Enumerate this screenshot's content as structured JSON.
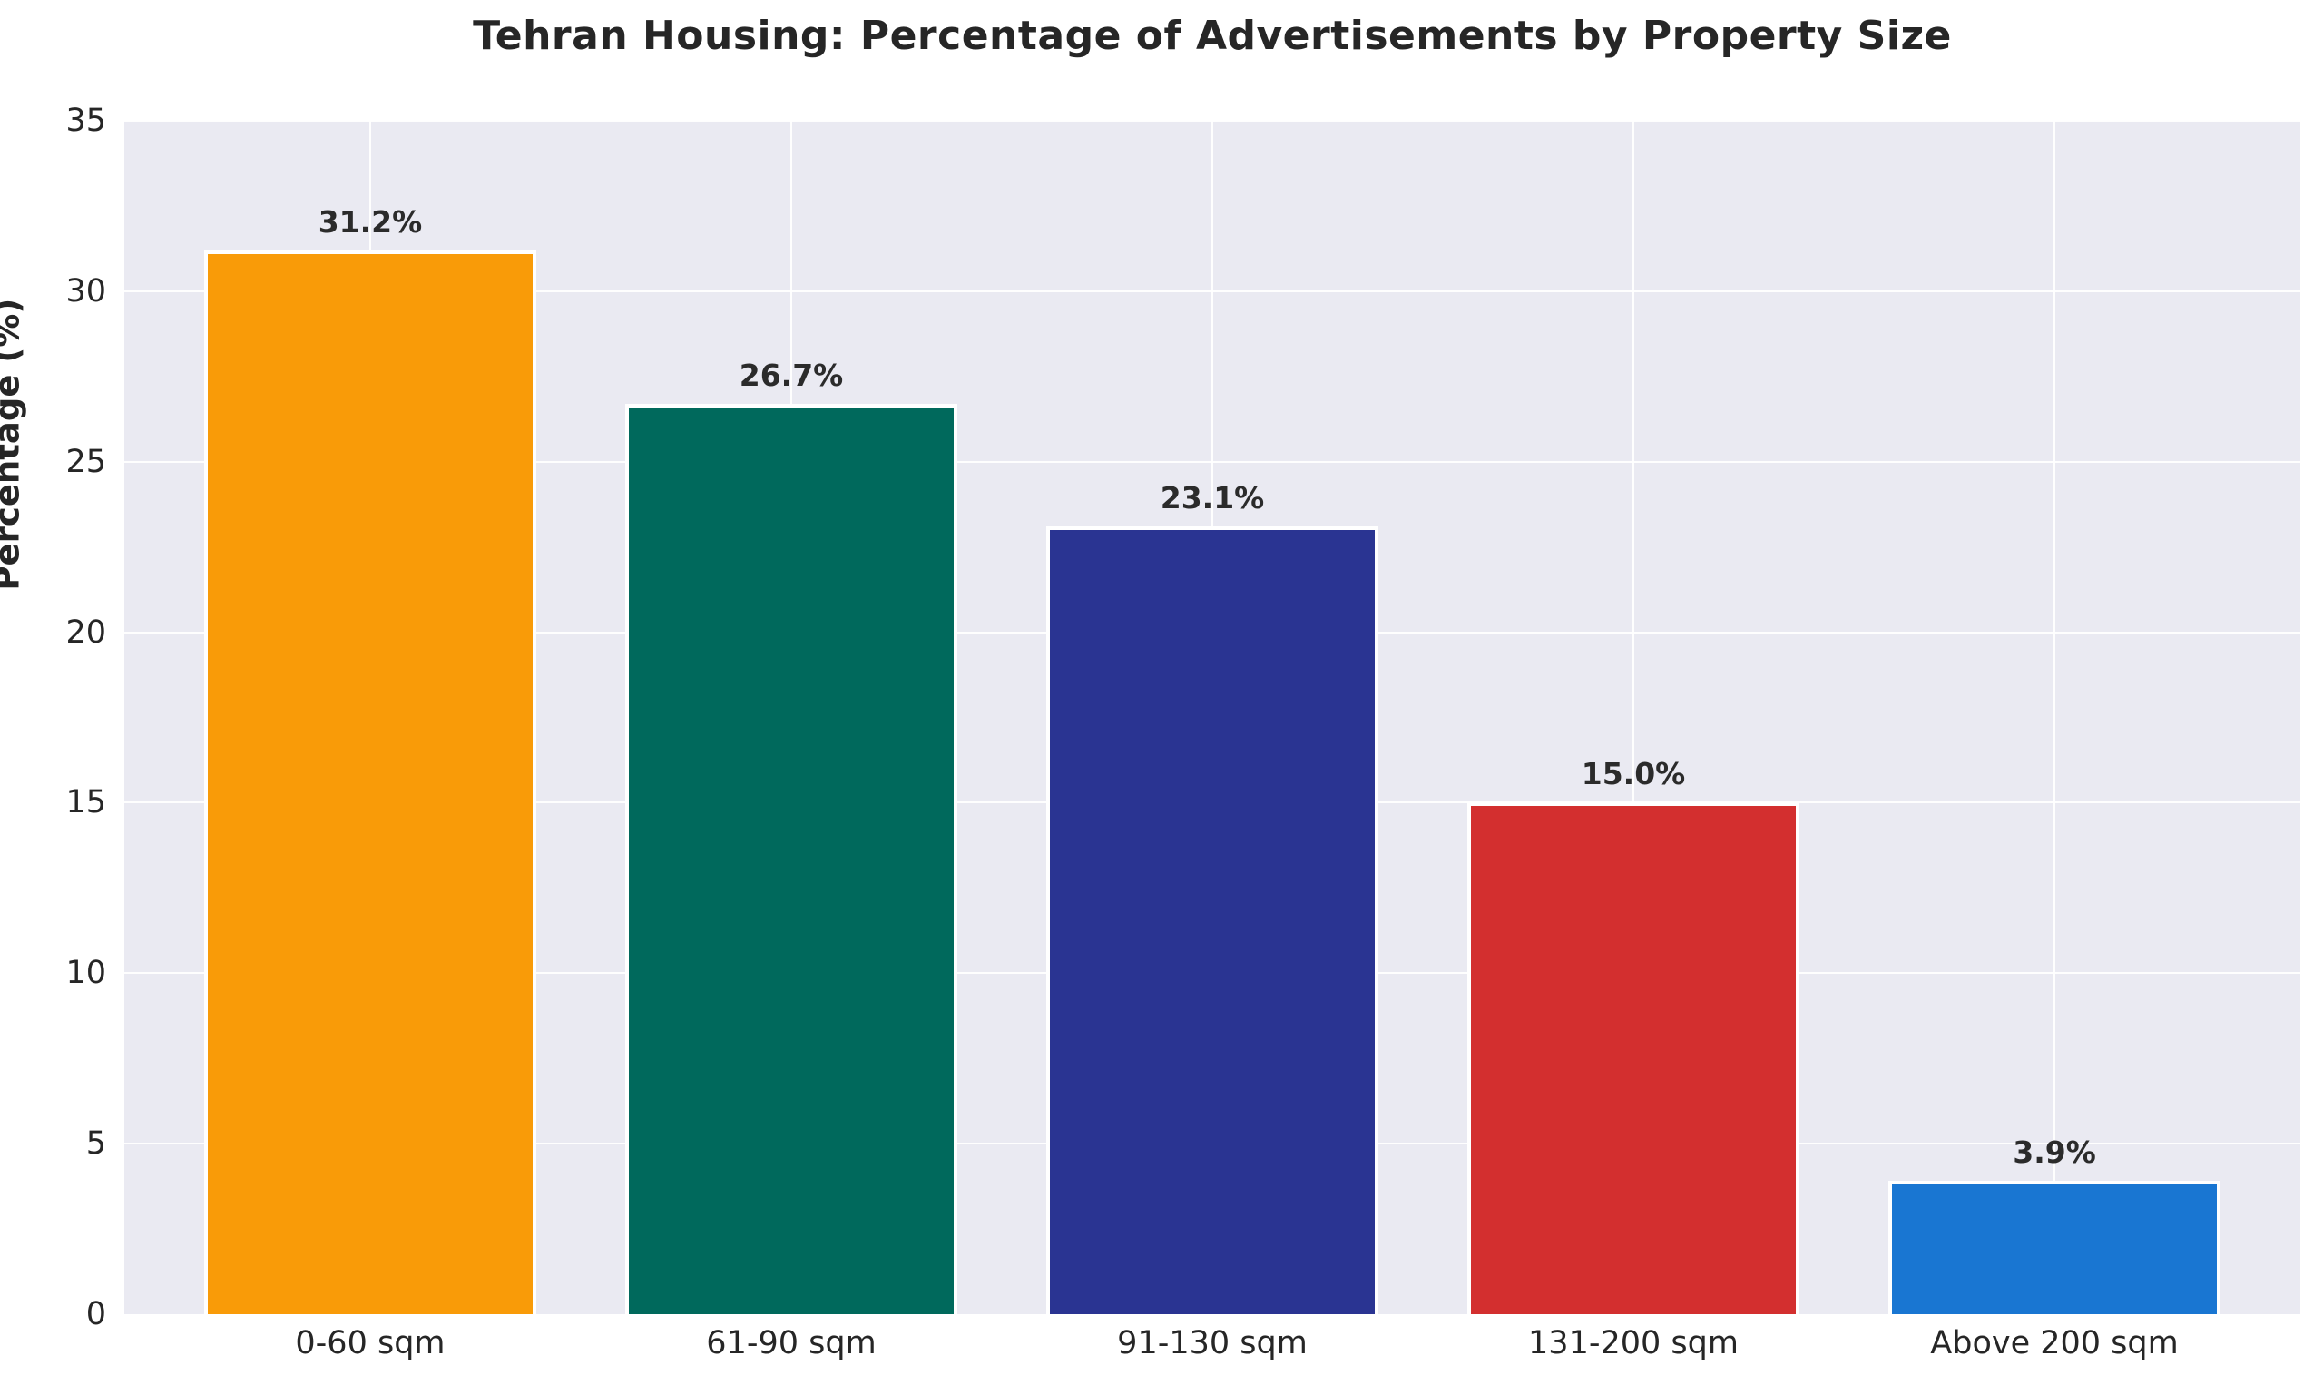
{
  "chart_data": {
    "type": "bar",
    "title": "Tehran Housing: Percentage of Advertisements by Property Size",
    "xlabel": "",
    "ylabel": "Percentage (%)",
    "categories": [
      "0-60 sqm",
      "61-90 sqm",
      "91-130 sqm",
      "131-200 sqm",
      "Above 200 sqm"
    ],
    "values": [
      31.2,
      26.7,
      23.1,
      15.0,
      3.9
    ],
    "value_labels": [
      "31.2%",
      "26.7%",
      "23.1%",
      "15.0%",
      "3.9%"
    ],
    "bar_colors": [
      "#F99B08",
      "#00695C",
      "#2A3492",
      "#D32F2F",
      "#1976D2"
    ],
    "ylim": [
      0,
      35
    ],
    "yticks": [
      0,
      5,
      10,
      15,
      20,
      25,
      30,
      35
    ],
    "grid": "on",
    "legend": "none",
    "plot_background": "#EAEAF2",
    "grid_color": "#FFFFFF",
    "bar_edge_color": "#FFFFFF",
    "text_color": "#262626"
  }
}
